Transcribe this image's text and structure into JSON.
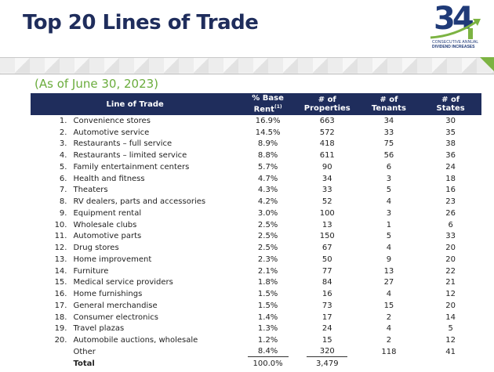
{
  "header": {
    "title": "Top 20 Lines of Trade",
    "logo": {
      "number": "34",
      "line1": "CONSECUTIVE ANNUAL",
      "line2": "DIVIDEND INCREASES"
    }
  },
  "subtitle": "(As of June 30, 2023)",
  "colors": {
    "navy": "#1f2d5c",
    "green": "#6aac3c",
    "accent_green": "#7cb342"
  },
  "table": {
    "columns": {
      "line": "Line of Trade",
      "rent_line1": "% Base",
      "rent_line2": "Rent",
      "rent_footnote": "(1)",
      "props_line1": "# of",
      "props_line2": "Properties",
      "tenants_line1": "# of",
      "tenants_line2": "Tenants",
      "states_line1": "# of",
      "states_line2": "States"
    },
    "rows": [
      {
        "rank": "1.",
        "name": "Convenience stores",
        "rent": "16.9%",
        "properties": "663",
        "tenants": "34",
        "states": "30"
      },
      {
        "rank": "2.",
        "name": "Automotive service",
        "rent": "14.5%",
        "properties": "572",
        "tenants": "33",
        "states": "35"
      },
      {
        "rank": "3.",
        "name": "Restaurants – full service",
        "rent": "8.9%",
        "properties": "418",
        "tenants": "75",
        "states": "38"
      },
      {
        "rank": "4.",
        "name": "Restaurants – limited service",
        "rent": "8.8%",
        "properties": "611",
        "tenants": "56",
        "states": "36"
      },
      {
        "rank": "5.",
        "name": "Family entertainment centers",
        "rent": "5.7%",
        "properties": "90",
        "tenants": "6",
        "states": "24"
      },
      {
        "rank": "6.",
        "name": "Health and fitness",
        "rent": "4.7%",
        "properties": "34",
        "tenants": "3",
        "states": "18"
      },
      {
        "rank": "7.",
        "name": "Theaters",
        "rent": "4.3%",
        "properties": "33",
        "tenants": "5",
        "states": "16"
      },
      {
        "rank": "8.",
        "name": "RV dealers, parts and accessories",
        "rent": "4.2%",
        "properties": "52",
        "tenants": "4",
        "states": "23"
      },
      {
        "rank": "9.",
        "name": "Equipment rental",
        "rent": "3.0%",
        "properties": "100",
        "tenants": "3",
        "states": "26"
      },
      {
        "rank": "10.",
        "name": "Wholesale clubs",
        "rent": "2.5%",
        "properties": "13",
        "tenants": "1",
        "states": "6"
      },
      {
        "rank": "11.",
        "name": "Automotive parts",
        "rent": "2.5%",
        "properties": "150",
        "tenants": "5",
        "states": "33"
      },
      {
        "rank": "12.",
        "name": "Drug stores",
        "rent": "2.5%",
        "properties": "67",
        "tenants": "4",
        "states": "20"
      },
      {
        "rank": "13.",
        "name": "Home improvement",
        "rent": "2.3%",
        "properties": "50",
        "tenants": "9",
        "states": "20"
      },
      {
        "rank": "14.",
        "name": "Furniture",
        "rent": "2.1%",
        "properties": "77",
        "tenants": "13",
        "states": "22"
      },
      {
        "rank": "15.",
        "name": "Medical service providers",
        "rent": "1.8%",
        "properties": "84",
        "tenants": "27",
        "states": "21"
      },
      {
        "rank": "16.",
        "name": "Home furnishings",
        "rent": "1.5%",
        "properties": "16",
        "tenants": "4",
        "states": "12"
      },
      {
        "rank": "17.",
        "name": "General merchandise",
        "rent": "1.5%",
        "properties": "73",
        "tenants": "15",
        "states": "20"
      },
      {
        "rank": "18.",
        "name": "Consumer electronics",
        "rent": "1.4%",
        "properties": "17",
        "tenants": "2",
        "states": "14"
      },
      {
        "rank": "19.",
        "name": "Travel plazas",
        "rent": "1.3%",
        "properties": "24",
        "tenants": "4",
        "states": "5"
      },
      {
        "rank": "20.",
        "name": "Automobile auctions, wholesale",
        "rent": "1.2%",
        "properties": "15",
        "tenants": "2",
        "states": "12"
      }
    ],
    "other": {
      "name": "Other",
      "rent": "8.4%",
      "properties": "320",
      "tenants": "118",
      "states": "41"
    },
    "total": {
      "name": "Total",
      "rent": "100.0%",
      "properties": "3,479"
    }
  }
}
